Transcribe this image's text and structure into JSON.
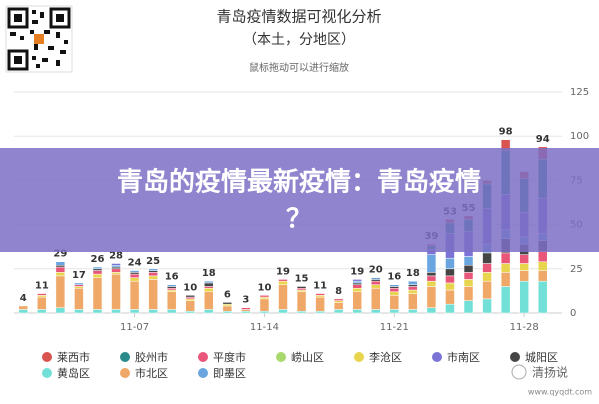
{
  "chart_data": {
    "type": "stacked-bar",
    "title": "青岛疫情数据可视化分析",
    "subtitle": "（本土，分地区）",
    "hint": "鼠标拖动可以进行缩放",
    "categories": [
      null,
      null,
      null,
      null,
      null,
      null,
      "11-07",
      null,
      null,
      null,
      null,
      null,
      null,
      "11-14",
      null,
      null,
      null,
      null,
      null,
      null,
      "11-21",
      null,
      null,
      null,
      null,
      null,
      null,
      "11-28",
      null
    ],
    "series": [
      {
        "name": "莱西市",
        "color": "#d9534f",
        "values": [
          0,
          0,
          0,
          0,
          0,
          0,
          0,
          0,
          0,
          0,
          0,
          0,
          0,
          0,
          0,
          0,
          0,
          0,
          0,
          0,
          0,
          0,
          1,
          2,
          2,
          2,
          6,
          4,
          7
        ]
      },
      {
        "name": "胶州市",
        "color": "#2b8a8a",
        "values": [
          0,
          0,
          0,
          0,
          0,
          0,
          0,
          0,
          0,
          0,
          0,
          0,
          0,
          0,
          0,
          0,
          0,
          0,
          0,
          0,
          0,
          0,
          2,
          6,
          7,
          14,
          25,
          19,
          22
        ]
      },
      {
        "name": "平度市",
        "color": "#e8577a",
        "values": [
          0,
          1,
          3,
          1,
          2,
          2,
          2,
          2,
          1,
          1,
          1,
          0,
          1,
          1,
          1,
          1,
          1,
          1,
          2,
          2,
          2,
          2,
          3,
          4,
          4,
          5,
          6,
          5,
          6
        ]
      },
      {
        "name": "崂山区",
        "color": "#a8d86e",
        "values": [
          0,
          0,
          0,
          0,
          0,
          0,
          0,
          0,
          0,
          0,
          0,
          0,
          0,
          0,
          0,
          0,
          0,
          0,
          0,
          0,
          0,
          0,
          0,
          0,
          0,
          0,
          0,
          0,
          0
        ]
      },
      {
        "name": "李沧区",
        "color": "#e8d44d",
        "values": [
          0,
          1,
          2,
          1,
          2,
          1,
          2,
          2,
          1,
          1,
          2,
          1,
          0,
          1,
          2,
          1,
          1,
          1,
          2,
          2,
          2,
          2,
          3,
          4,
          4,
          5,
          5,
          4,
          5
        ]
      },
      {
        "name": "市南区",
        "color": "#7b74d6",
        "values": [
          0,
          0,
          0,
          0,
          0,
          1,
          0,
          0,
          0,
          0,
          0,
          0,
          0,
          0,
          0,
          0,
          0,
          0,
          1,
          0,
          0,
          0,
          3,
          14,
          14,
          20,
          20,
          14,
          20
        ]
      },
      {
        "name": "城阳区",
        "color": "#454545",
        "values": [
          0,
          0,
          1,
          0,
          1,
          1,
          1,
          1,
          1,
          1,
          2,
          1,
          0,
          0,
          0,
          1,
          0,
          0,
          1,
          1,
          1,
          1,
          2,
          4,
          4,
          6,
          8,
          6,
          6
        ]
      },
      {
        "name": "黄岛区",
        "color": "#72e0d6",
        "values": [
          2,
          2,
          3,
          2,
          2,
          2,
          2,
          2,
          2,
          1,
          2,
          1,
          1,
          1,
          2,
          1,
          1,
          2,
          2,
          2,
          2,
          2,
          3,
          5,
          7,
          8,
          15,
          18,
          18
        ]
      },
      {
        "name": "市北区",
        "color": "#f0a868",
        "values": [
          2,
          7,
          18,
          12,
          18,
          20,
          16,
          17,
          10,
          6,
          10,
          3,
          1,
          7,
          14,
          11,
          8,
          4,
          10,
          12,
          8,
          9,
          12,
          8,
          8,
          10,
          8,
          6,
          6
        ]
      },
      {
        "name": "即墨区",
        "color": "#6aa5e0",
        "values": [
          0,
          0,
          2,
          1,
          1,
          1,
          1,
          1,
          1,
          0,
          1,
          0,
          0,
          0,
          0,
          0,
          0,
          0,
          1,
          1,
          1,
          2,
          10,
          6,
          5,
          5,
          5,
          4,
          4
        ]
      }
    ],
    "total_labels": [
      4,
      11,
      29,
      17,
      26,
      28,
      24,
      25,
      16,
      10,
      18,
      6,
      3,
      10,
      19,
      15,
      11,
      8,
      19,
      20,
      16,
      18,
      39,
      53,
      55,
      null,
      98,
      null,
      94
    ],
    "ylim": [
      0,
      125
    ],
    "yticks": [
      0,
      25,
      50,
      75,
      100,
      125
    ],
    "grid": true
  },
  "overlay": {
    "line1": "青岛的疫情最新疫情：青岛疫情",
    "line2": "？"
  },
  "watermark": {
    "name": "清扬说",
    "url": "www.qyqdt.com"
  }
}
